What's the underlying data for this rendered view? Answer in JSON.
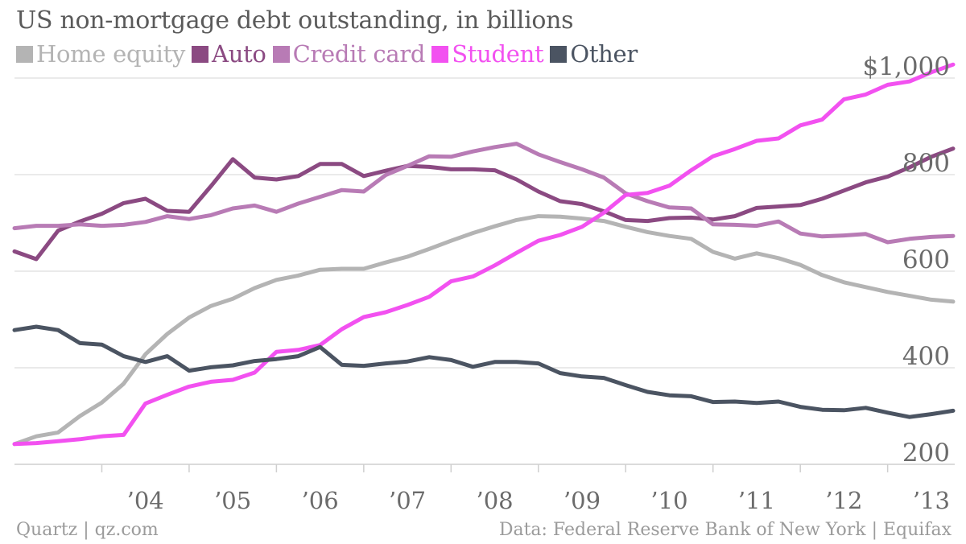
{
  "chart_data": {
    "type": "line",
    "title": "US non-mortgage debt outstanding, in billions",
    "x_tick_labels": [
      "’04",
      "’05",
      "’06",
      "’07",
      "’08",
      "’09",
      "’10",
      "’11",
      "’12",
      "’13"
    ],
    "y_tick_labels": [
      "$1,000",
      "800",
      "600",
      "400",
      "200"
    ],
    "y_ticks": [
      1000,
      800,
      600,
      400,
      200
    ],
    "ylim": [
      200,
      1040
    ],
    "xlim": [
      2003.0,
      2013.75
    ],
    "grid": true,
    "legend_position": "top-left",
    "x": [
      2003.0,
      2003.25,
      2003.5,
      2003.75,
      2004.0,
      2004.25,
      2004.5,
      2004.75,
      2005.0,
      2005.25,
      2005.5,
      2005.75,
      2006.0,
      2006.25,
      2006.5,
      2006.75,
      2007.0,
      2007.25,
      2007.5,
      2007.75,
      2008.0,
      2008.25,
      2008.5,
      2008.75,
      2009.0,
      2009.25,
      2009.5,
      2009.75,
      2010.0,
      2010.25,
      2010.5,
      2010.75,
      2011.0,
      2011.25,
      2011.5,
      2011.75,
      2012.0,
      2012.25,
      2012.5,
      2012.75,
      2013.0,
      2013.25,
      2013.5,
      2013.75
    ],
    "series": [
      {
        "name": "Home equity",
        "color": "#b4b4b4",
        "values": [
          242,
          258,
          266,
          300,
          328,
          367,
          428,
          470,
          504,
          528,
          543,
          565,
          582,
          591,
          603,
          605,
          605,
          618,
          630,
          646,
          663,
          679,
          693,
          706,
          714,
          713,
          709,
          704,
          692,
          681,
          673,
          667,
          640,
          626,
          637,
          627,
          613,
          592,
          577,
          567,
          557,
          549,
          541,
          537
        ]
      },
      {
        "name": "Auto",
        "color": "#8b4a82",
        "values": [
          641,
          625,
          684,
          703,
          719,
          741,
          750,
          725,
          723,
          776,
          832,
          794,
          790,
          797,
          822,
          822,
          797,
          808,
          818,
          816,
          811,
          811,
          809,
          790,
          765,
          745,
          739,
          724,
          706,
          704,
          710,
          711,
          707,
          714,
          731,
          734,
          737,
          750,
          767,
          784,
          796,
          815,
          837,
          854
        ]
      },
      {
        "name": "Credit card",
        "color": "#b87bb5",
        "values": [
          689,
          694,
          694,
          697,
          694,
          696,
          702,
          714,
          708,
          716,
          730,
          736,
          723,
          740,
          754,
          768,
          765,
          799,
          818,
          838,
          837,
          848,
          857,
          864,
          842,
          826,
          811,
          794,
          761,
          745,
          732,
          730,
          697,
          696,
          694,
          703,
          678,
          672,
          674,
          677,
          660,
          667,
          671,
          673
        ]
      },
      {
        "name": "Student",
        "color": "#f251f0",
        "values": [
          242,
          244,
          248,
          252,
          258,
          261,
          326,
          344,
          361,
          371,
          375,
          390,
          433,
          437,
          447,
          480,
          505,
          515,
          530,
          547,
          579,
          589,
          612,
          638,
          663,
          675,
          692,
          721,
          758,
          762,
          777,
          809,
          838,
          853,
          870,
          875,
          902,
          914,
          956,
          966,
          986,
          993,
          1012,
          1028
        ]
      },
      {
        "name": "Other",
        "color": "#4b5462",
        "values": [
          478,
          485,
          478,
          451,
          448,
          424,
          412,
          424,
          394,
          401,
          405,
          414,
          418,
          424,
          443,
          406,
          404,
          409,
          413,
          422,
          416,
          402,
          412,
          412,
          409,
          389,
          382,
          379,
          364,
          350,
          343,
          341,
          329,
          330,
          327,
          330,
          319,
          313,
          312,
          317,
          307,
          298,
          304,
          311
        ]
      }
    ]
  },
  "source": {
    "left": "Quartz | qz.com",
    "right": "Data: Federal Reserve Bank of New York | Equifax"
  }
}
